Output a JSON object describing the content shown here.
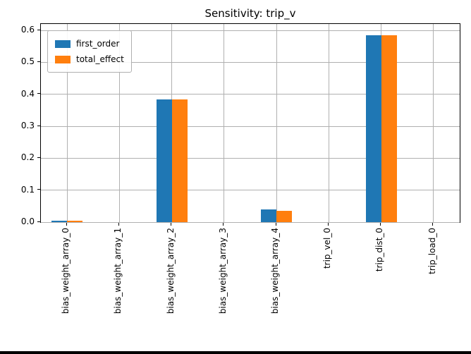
{
  "chart_data": {
    "type": "bar",
    "title": "Sensitivity: trip_v",
    "categories": [
      "bias_weight_array_0",
      "bias_weight_array_1",
      "bias_weight_array_2",
      "bias_weight_array_3",
      "bias_weight_array_4",
      "trip_vel_0",
      "trip_dist_0",
      "trip_load_0"
    ],
    "series": [
      {
        "name": "first_order",
        "color": "#1f77b4",
        "values": [
          0.005,
          0.0,
          0.385,
          0.0,
          0.04,
          0.0,
          0.585,
          0.0
        ]
      },
      {
        "name": "total_effect",
        "color": "#ff7f0e",
        "values": [
          0.005,
          0.0,
          0.385,
          0.0,
          0.035,
          0.0,
          0.585,
          0.0
        ]
      }
    ],
    "yticks": [
      0.0,
      0.1,
      0.2,
      0.3,
      0.4,
      0.5,
      0.6
    ],
    "ytick_labels": [
      "0.0",
      "0.1",
      "0.2",
      "0.3",
      "0.4",
      "0.5",
      "0.6"
    ],
    "ylim": [
      0,
      0.62
    ],
    "xlabel": "",
    "ylabel": "",
    "grid": true,
    "legend_position": "upper left"
  }
}
